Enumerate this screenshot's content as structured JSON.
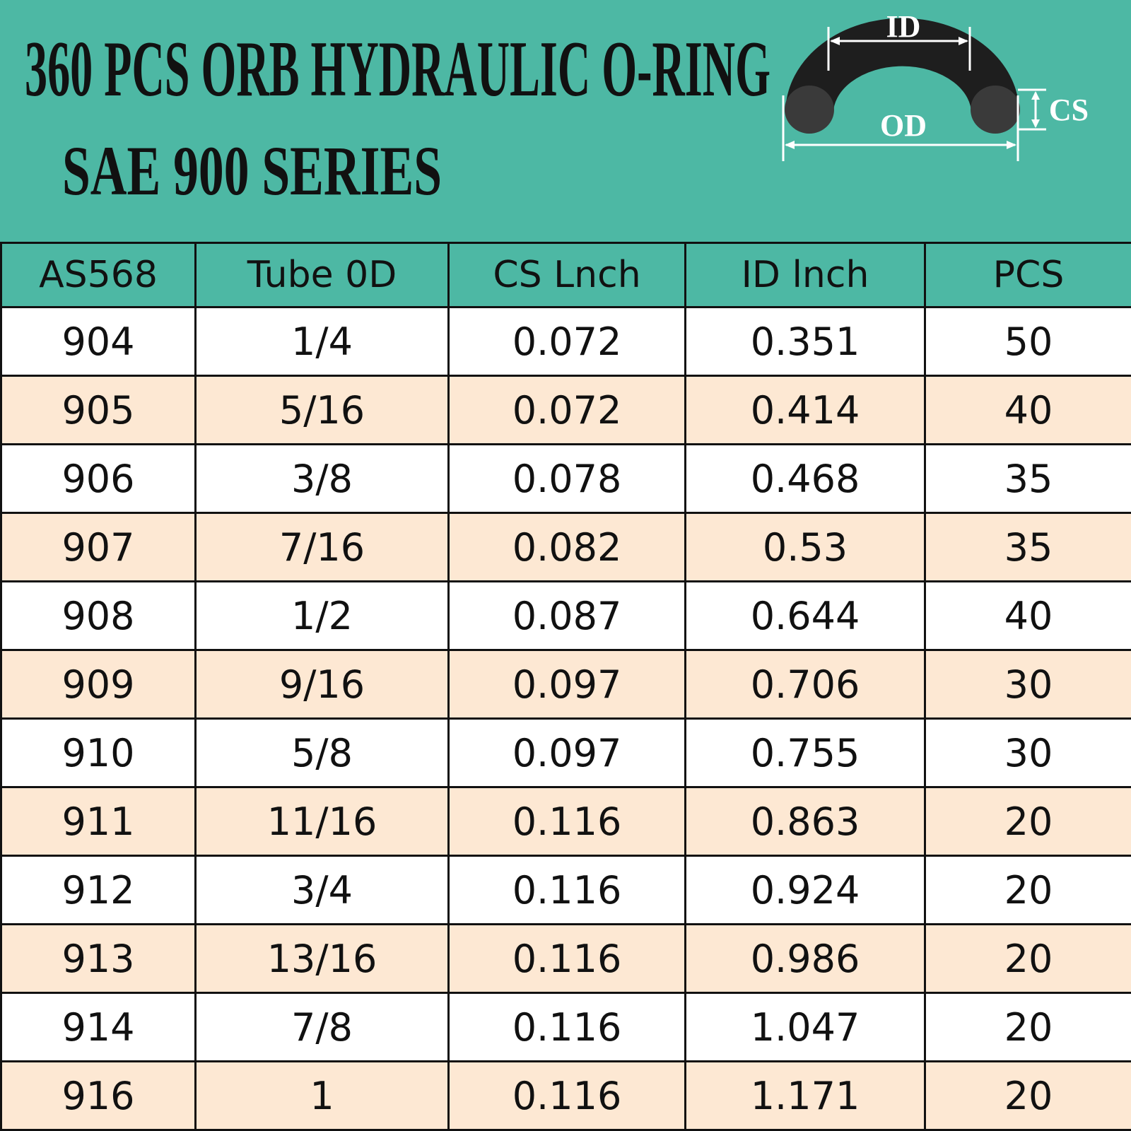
{
  "header": {
    "title_line1": "360 PCS ORB HYDRAULIC O-RING",
    "title_line2": "SAE 900 SERIES"
  },
  "diagram": {
    "id_label": "ID",
    "od_label": "OD",
    "cs_label": "CS"
  },
  "table": {
    "columns": [
      "AS568",
      "Tube 0D",
      "CS Lnch",
      "ID lnch",
      "PCS"
    ],
    "rows": [
      [
        "904",
        "1/4",
        "0.072",
        "0.351",
        "50"
      ],
      [
        "905",
        "5/16",
        "0.072",
        "0.414",
        "40"
      ],
      [
        "906",
        "3/8",
        "0.078",
        "0.468",
        "35"
      ],
      [
        "907",
        "7/16",
        "0.082",
        "0.53",
        "35"
      ],
      [
        "908",
        "1/2",
        "0.087",
        "0.644",
        "40"
      ],
      [
        "909",
        "9/16",
        "0.097",
        "0.706",
        "30"
      ],
      [
        "910",
        "5/8",
        "0.097",
        "0.755",
        "30"
      ],
      [
        "911",
        "11/16",
        "0.116",
        "0.863",
        "20"
      ],
      [
        "912",
        "3/4",
        "0.116",
        "0.924",
        "20"
      ],
      [
        "913",
        "13/16",
        "0.116",
        "0.986",
        "20"
      ],
      [
        "914",
        "7/8",
        "0.116",
        "1.047",
        "20"
      ],
      [
        "916",
        "1",
        "0.116",
        "1.171",
        "20"
      ]
    ]
  }
}
